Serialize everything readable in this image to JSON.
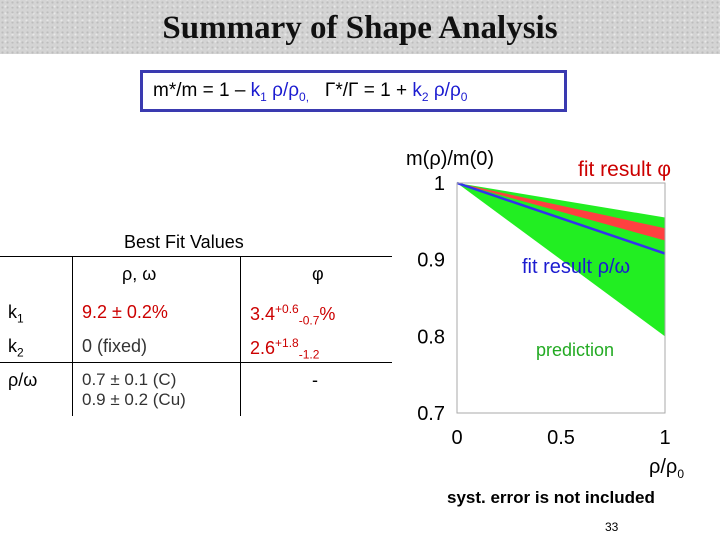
{
  "slide": {
    "title": "Summary of Shape Analysis",
    "formula": {
      "part1": "m*/m = 1 – ",
      "k1": "k",
      "k1_sub": "1",
      "rho1": " ρ/ρ",
      "rho1_sub": "0,",
      "gamma": "Γ*/Γ",
      "part2": " = 1 + ",
      "k2": "k",
      "k2_sub": "2",
      "rho2": " ρ/ρ",
      "rho2_sub": "0"
    },
    "table": {
      "heading": "Best Fit Values",
      "col1": "ρ, ω",
      "col2": "φ",
      "rows": [
        {
          "param": "k",
          "param_sub": "1",
          "c1": "9.2 ± 0.2%",
          "c2_main": "3.4",
          "c2_sup": "+0.6",
          "c2_sub": "-0.7",
          "c2_tail": "%"
        },
        {
          "param": "k",
          "param_sub": "2",
          "c1": "0 (fixed)",
          "c2_main": "2.6",
          "c2_sup": "+1.8",
          "c2_sub": "-1.2",
          "c2_tail": ""
        },
        {
          "param": "ρ/ω",
          "param_sub": "",
          "c1a": "0.7 ± 0.1 (C)",
          "c1b": "0.9 ± 0.2 (Cu)",
          "c2_main": "-"
        }
      ]
    },
    "chart_data": {
      "type": "line",
      "ylabel": "m(ρ)/m(0)",
      "xlabel": "ρ/ρ",
      "xlabel_sub": "0",
      "y_ticks": [
        "1",
        "0.9",
        "0.8",
        "0.7"
      ],
      "x_ticks": [
        "0",
        "0.5",
        "1"
      ],
      "xlim": [
        0,
        1
      ],
      "ylim": [
        0.7,
        1
      ],
      "annotations": {
        "fit_phi": "fit result φ",
        "fit_rho_omega": "fit result ρ/ω",
        "prediction": "prediction"
      },
      "series": [
        {
          "color": "#ff4040",
          "x": [
            0,
            1
          ],
          "y_upper": [
            1,
            0.941
          ],
          "y_lower": [
            1,
            0.925
          ]
        },
        {
          "color": "#3333ee",
          "x": [
            0,
            1
          ],
          "y": [
            1,
            0.908
          ]
        },
        {
          "color": "#22ee22",
          "x": [
            0,
            1
          ],
          "y_upper": [
            1,
            0.955
          ],
          "y_lower": [
            1,
            0.8
          ]
        }
      ]
    },
    "footnote": "syst. error is not included",
    "page_number": "33"
  }
}
